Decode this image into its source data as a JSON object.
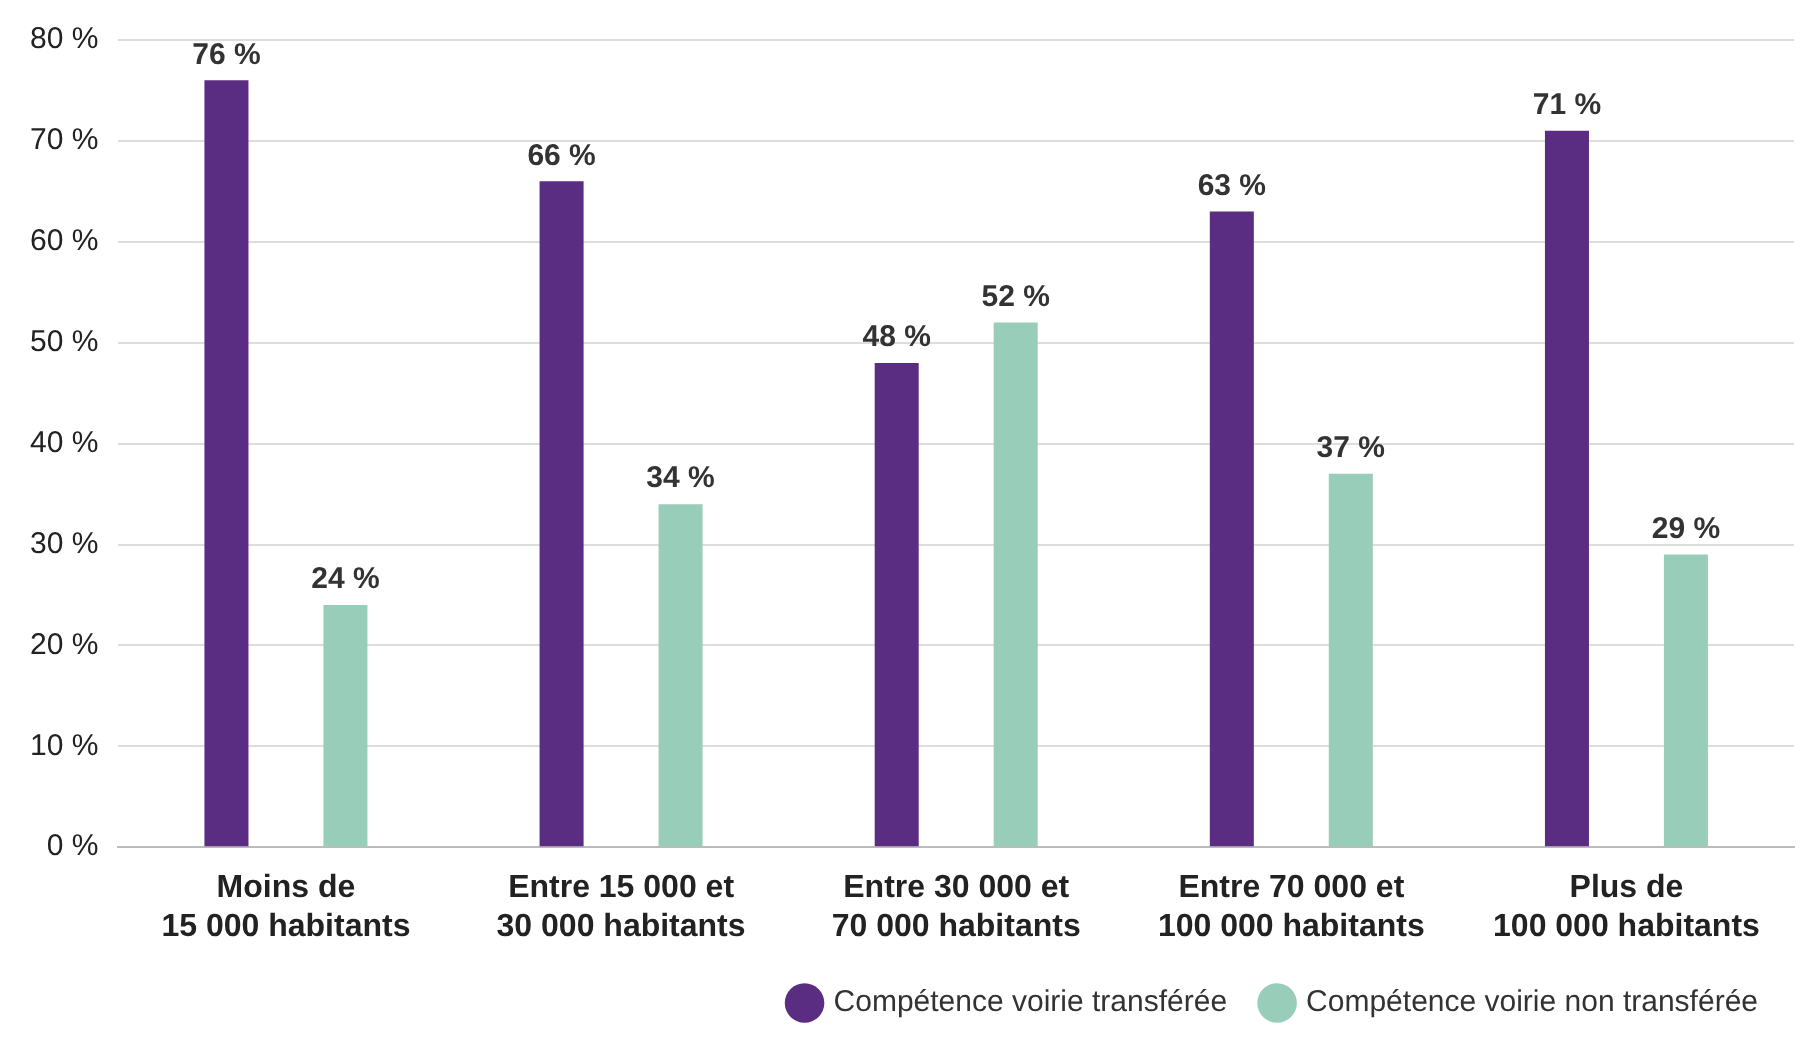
{
  "chart_data": {
    "type": "bar",
    "categories": [
      "Moins de\n15 000 habitants",
      "Entre 15 000 et\n30 000 habitants",
      "Entre 30 000 et\n70 000 habitants",
      "Entre 70 000 et\n100 000 habitants",
      "Plus de\n100 000 habitants"
    ],
    "series": [
      {
        "name": "Compétence voirie transférée",
        "color": "#5b2d82",
        "values": [
          76,
          66,
          48,
          63,
          71
        ],
        "value_labels": [
          "76 %",
          "66 %",
          "48 %",
          "63 %",
          "71 %"
        ]
      },
      {
        "name": "Compétence voirie non transférée",
        "color": "#97cdb9",
        "values": [
          24,
          34,
          52,
          37,
          29
        ],
        "value_labels": [
          "24 %",
          "34 %",
          "52 %",
          "37 %",
          "29 %"
        ]
      }
    ],
    "ylim": [
      0,
      80
    ],
    "yticks": [
      {
        "value": 0,
        "label": "0 %"
      },
      {
        "value": 10,
        "label": "10 %"
      },
      {
        "value": 20,
        "label": "20 %"
      },
      {
        "value": 30,
        "label": "30 %"
      },
      {
        "value": 40,
        "label": "40 %"
      },
      {
        "value": 50,
        "label": "50 %"
      },
      {
        "value": 60,
        "label": "60 %"
      },
      {
        "value": 70,
        "label": "70 %"
      },
      {
        "value": 80,
        "label": "80 %"
      }
    ],
    "grid": "y",
    "legend": "bottom right",
    "marker": "circle"
  }
}
